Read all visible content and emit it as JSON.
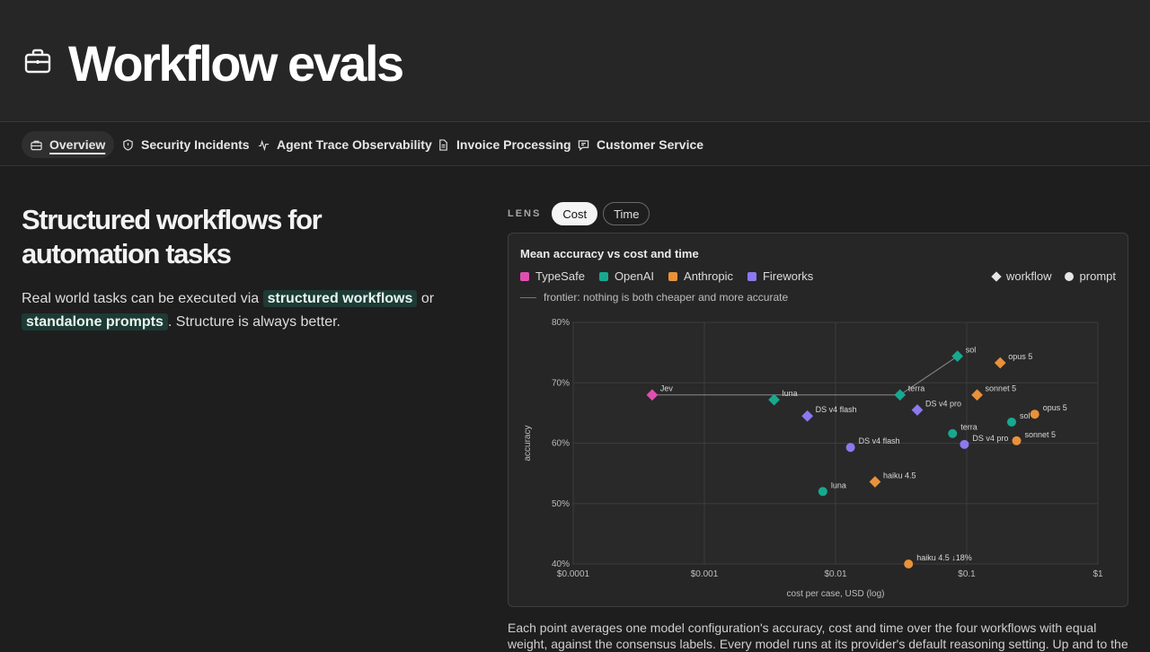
{
  "header": {
    "title": "Workflow evals",
    "icon": "briefcase-icon"
  },
  "tabs": [
    {
      "label": "Overview",
      "icon": "briefcase-icon",
      "active": true
    },
    {
      "label": "Security Incidents",
      "icon": "shield-icon"
    },
    {
      "label": "Agent Trace Observability",
      "icon": "pulse-icon"
    },
    {
      "label": "Invoice Processing",
      "icon": "document-icon"
    },
    {
      "label": "Customer Service",
      "icon": "chat-icon"
    }
  ],
  "intro": {
    "heading_line1": "Structured workflows for",
    "heading_line2": "automation tasks",
    "text_before": "Real world tasks can be executed via",
    "highlight1": "structured workflows",
    "text_mid": "or",
    "highlight2": "standalone prompts",
    "text_after": ". Structure is always better."
  },
  "lens": {
    "label": "LENS",
    "options": [
      "Cost",
      "Time"
    ],
    "selected": "Cost"
  },
  "legend": {
    "providers": [
      {
        "name": "TypeSafe",
        "color": "#e04fb0"
      },
      {
        "name": "OpenAI",
        "color": "#17a98f"
      },
      {
        "name": "Anthropic",
        "color": "#e8923a"
      },
      {
        "name": "Fireworks",
        "color": "#8c78f0"
      }
    ],
    "shapes": [
      {
        "name": "workflow",
        "shape": "diamond"
      },
      {
        "name": "prompt",
        "shape": "circle"
      }
    ],
    "frontier_note": "frontier: nothing is both cheaper and more accurate"
  },
  "chart_data": {
    "type": "scatter",
    "title": "Mean accuracy vs cost and time",
    "xlabel": "cost per case, USD (log)",
    "ylabel": "accuracy",
    "x_scale": "log",
    "xlim": [
      0.0001,
      1
    ],
    "ylim": [
      40,
      80
    ],
    "x_ticks": [
      {
        "value": 0.0001,
        "label": "$0.0001"
      },
      {
        "value": 0.001,
        "label": "$0.001"
      },
      {
        "value": 0.01,
        "label": "$0.01"
      },
      {
        "value": 0.1,
        "label": "$0.1"
      },
      {
        "value": 1,
        "label": "$1"
      }
    ],
    "y_ticks": [
      {
        "value": 40,
        "label": "40%"
      },
      {
        "value": 50,
        "label": "50%"
      },
      {
        "value": 60,
        "label": "60%"
      },
      {
        "value": 70,
        "label": "70%"
      },
      {
        "value": 80,
        "label": "80%"
      }
    ],
    "grid": true,
    "points": [
      {
        "label": "Jev",
        "provider": "TypeSafe",
        "shape": "diamond",
        "x": 0.0004,
        "y": 68
      },
      {
        "label": "luna",
        "provider": "OpenAI",
        "shape": "diamond",
        "x": 0.0034,
        "y": 67.2
      },
      {
        "label": "terra",
        "provider": "OpenAI",
        "shape": "diamond",
        "x": 0.031,
        "y": 68
      },
      {
        "label": "sol",
        "provider": "OpenAI",
        "shape": "diamond",
        "x": 0.085,
        "y": 74.4
      },
      {
        "label": "DS v4 flash",
        "provider": "Fireworks",
        "shape": "diamond",
        "x": 0.0061,
        "y": 64.5
      },
      {
        "label": "DS v4 pro",
        "provider": "Fireworks",
        "shape": "diamond",
        "x": 0.042,
        "y": 65.5
      },
      {
        "label": "opus 5",
        "provider": "Anthropic",
        "shape": "diamond",
        "x": 0.18,
        "y": 73.3
      },
      {
        "label": "sonnet 5",
        "provider": "Anthropic",
        "shape": "diamond",
        "x": 0.12,
        "y": 68
      },
      {
        "label": "haiku 4.5",
        "provider": "Anthropic",
        "shape": "diamond",
        "x": 0.02,
        "y": 53.6
      },
      {
        "label": "luna",
        "provider": "OpenAI",
        "shape": "circle",
        "x": 0.008,
        "y": 52
      },
      {
        "label": "terra",
        "provider": "OpenAI",
        "shape": "circle",
        "x": 0.078,
        "y": 61.6
      },
      {
        "label": "sol",
        "provider": "OpenAI",
        "shape": "circle",
        "x": 0.22,
        "y": 63.5
      },
      {
        "label": "DS v4 flash",
        "provider": "Fireworks",
        "shape": "circle",
        "x": 0.013,
        "y": 59.3
      },
      {
        "label": "DS v4 pro",
        "provider": "Fireworks",
        "shape": "circle",
        "x": 0.096,
        "y": 59.8
      },
      {
        "label": "opus 5",
        "provider": "Anthropic",
        "shape": "circle",
        "x": 0.33,
        "y": 64.8
      },
      {
        "label": "sonnet 5",
        "provider": "Anthropic",
        "shape": "circle",
        "x": 0.24,
        "y": 60.4
      },
      {
        "label": "haiku 4.5 ↓18%",
        "provider": "Anthropic",
        "shape": "circle",
        "x": 0.036,
        "y": 40
      }
    ],
    "frontier": [
      {
        "x": 0.0004,
        "y": 68
      },
      {
        "x": 0.031,
        "y": 68
      },
      {
        "x": 0.085,
        "y": 74.4
      }
    ]
  },
  "caption": "Each point averages one model configuration's accuracy, cost and time over the four workflows with equal weight, against the consensus labels. Every model runs at its provider's default reasoning setting. Up and to the"
}
